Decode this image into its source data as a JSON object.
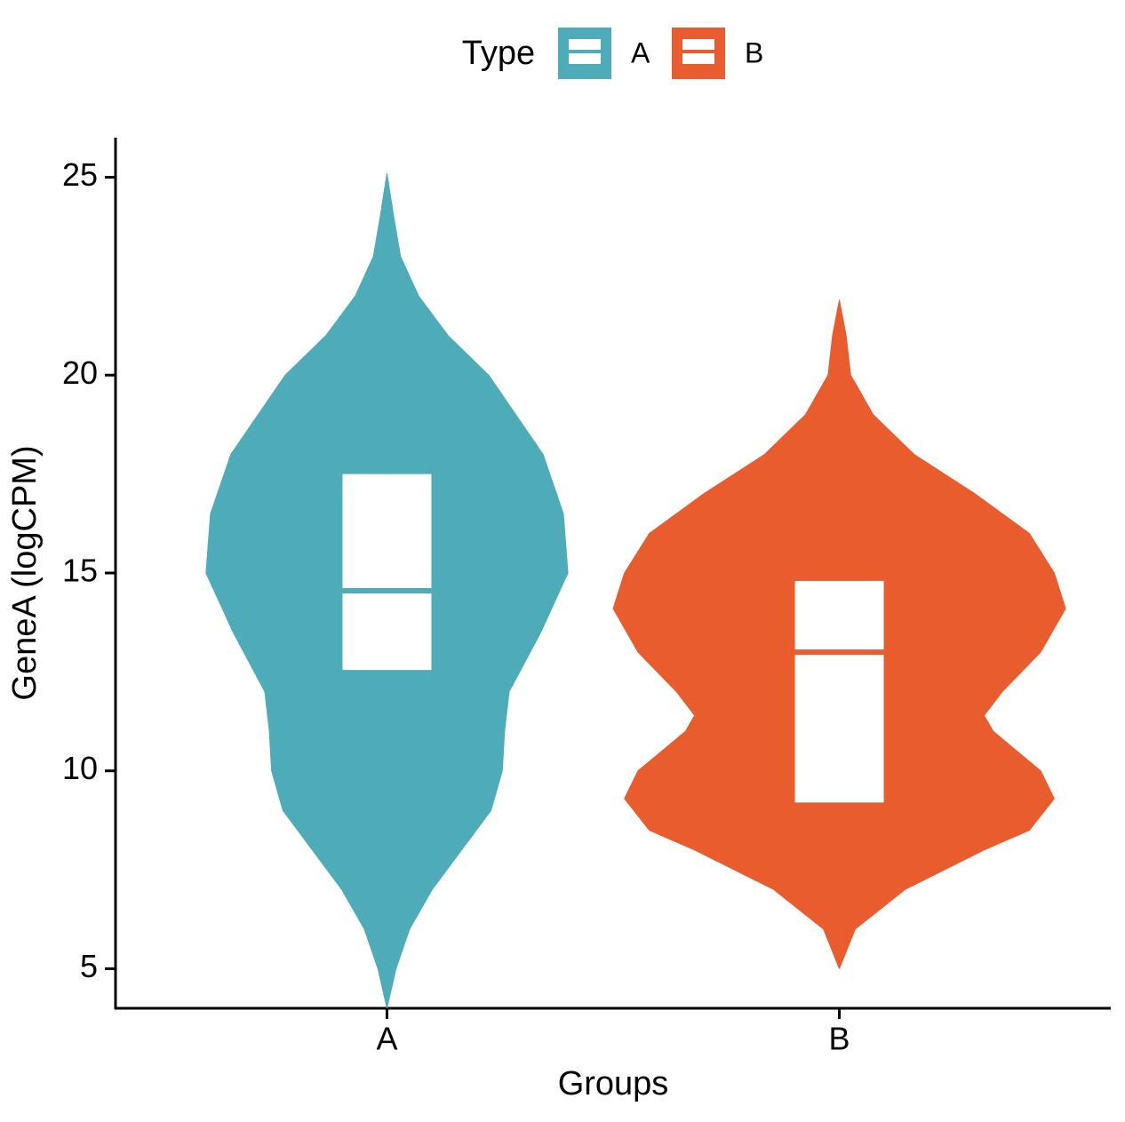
{
  "chart_data": {
    "type": "violin",
    "x_label": "Groups",
    "y_label": "GeneA (logCPM)",
    "legend_title": "Type",
    "legend_position": "top",
    "categories": [
      "A",
      "B"
    ],
    "ylim": [
      4,
      26
    ],
    "yticks": [
      5,
      10,
      15,
      20,
      25
    ],
    "series": [
      {
        "name": "A",
        "color": "#4eacb9",
        "y": [
          4,
          5,
          6,
          7,
          8,
          9,
          10,
          11,
          12,
          13.5,
          15,
          16.5,
          18,
          20,
          21,
          22,
          23,
          24,
          25.1
        ],
        "density": [
          0,
          0.04,
          0.1,
          0.2,
          0.33,
          0.46,
          0.51,
          0.52,
          0.54,
          0.68,
          0.8,
          0.78,
          0.69,
          0.45,
          0.27,
          0.14,
          0.06,
          0.03,
          0
        ],
        "q1": 12.55,
        "median": 14.55,
        "q3": 17.5
      },
      {
        "name": "B",
        "color": "#e85c2e",
        "y": [
          5,
          6,
          7,
          8,
          8.5,
          9.3,
          10,
          11,
          11.4,
          12,
          13,
          14.1,
          15,
          16,
          17,
          18,
          19,
          20,
          21,
          21.9
        ],
        "density": [
          0,
          0.07,
          0.29,
          0.64,
          0.84,
          0.95,
          0.89,
          0.68,
          0.64,
          0.72,
          0.89,
          1,
          0.95,
          0.84,
          0.6,
          0.33,
          0.15,
          0.05,
          0.03,
          0
        ],
        "q1": 9.2,
        "median": 13.0,
        "q3": 14.8
      }
    ]
  }
}
